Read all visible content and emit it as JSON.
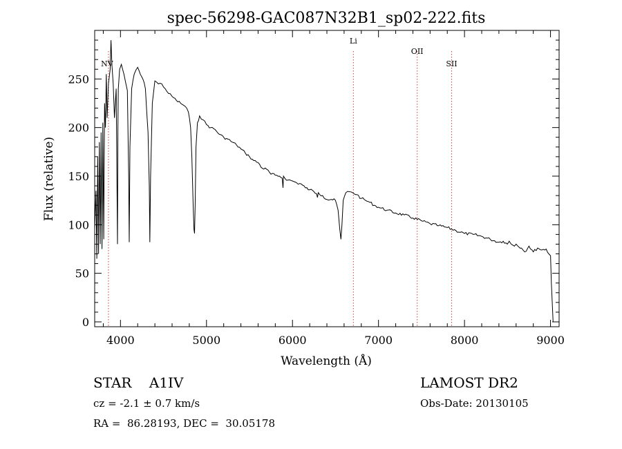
{
  "chart_data": {
    "type": "line",
    "title": "spec-56298-GAC087N32B1_sp02-222.fits",
    "xlabel": "Wavelength (Å)",
    "ylabel": "Flux (relative)",
    "xlim": [
      3700,
      9100
    ],
    "ylim": [
      -5,
      300
    ],
    "xticks": [
      4000,
      5000,
      6000,
      7000,
      8000,
      9000
    ],
    "yticks": [
      0,
      50,
      100,
      150,
      200,
      250
    ],
    "series": [
      {
        "name": "spectrum",
        "x": [
          3700,
          3715,
          3725,
          3735,
          3745,
          3755,
          3765,
          3775,
          3785,
          3795,
          3805,
          3815,
          3825,
          3835,
          3845,
          3860,
          3880,
          3890,
          3900,
          3915,
          3930,
          3950,
          3965,
          3970,
          3975,
          3990,
          4010,
          4040,
          4080,
          4095,
          4102,
          4110,
          4130,
          4160,
          4200,
          4230,
          4260,
          4290,
          4320,
          4335,
          4341,
          4350,
          4370,
          4400,
          4440,
          4480,
          4520,
          4560,
          4600,
          4650,
          4700,
          4750,
          4790,
          4815,
          4830,
          4845,
          4855,
          4861,
          4868,
          4878,
          4895,
          4920,
          4960,
          5000,
          5050,
          5100,
          5150,
          5200,
          5250,
          5300,
          5350,
          5400,
          5450,
          5500,
          5550,
          5600,
          5650,
          5700,
          5750,
          5800,
          5850,
          5880,
          5890,
          5895,
          5910,
          5950,
          6000,
          6050,
          6100,
          6150,
          6200,
          6250,
          6280,
          6290,
          6300,
          6350,
          6400,
          6450,
          6500,
          6530,
          6550,
          6563,
          6575,
          6590,
          6620,
          6660,
          6700,
          6750,
          6800,
          6850,
          6900,
          6950,
          7000,
          7100,
          7200,
          7300,
          7400,
          7500,
          7600,
          7700,
          7800,
          7900,
          8000,
          8100,
          8200,
          8300,
          8400,
          8450,
          8498,
          8520,
          8542,
          8580,
          8600,
          8662,
          8700,
          8750,
          8800,
          8850,
          8900,
          8950,
          8980,
          9000,
          9010,
          9030
        ],
        "y": [
          95,
          135,
          65,
          170,
          70,
          185,
          80,
          195,
          75,
          205,
          85,
          225,
          200,
          255,
          210,
          245,
          260,
          290,
          265,
          245,
          210,
          240,
          80,
          200,
          240,
          260,
          265,
          255,
          238,
          150,
          82,
          180,
          240,
          255,
          262,
          255,
          250,
          240,
          195,
          140,
          82,
          150,
          225,
          248,
          245,
          245,
          240,
          235,
          232,
          228,
          225,
          222,
          216,
          200,
          170,
          120,
          95,
          91,
          120,
          180,
          205,
          212,
          208,
          203,
          200,
          198,
          193,
          190,
          188,
          185,
          182,
          178,
          174,
          170,
          166,
          164,
          158,
          157,
          152,
          151,
          150,
          148,
          138,
          150,
          148,
          146,
          145,
          143,
          142,
          138,
          136,
          134,
          132,
          128,
          133,
          130,
          126,
          126,
          125,
          115,
          95,
          85,
          100,
          125,
          133,
          134,
          133,
          131,
          127,
          125,
          123,
          120,
          118,
          115,
          112,
          110,
          107,
          104,
          101,
          99,
          97,
          94,
          91,
          90,
          88,
          85,
          82,
          83,
          80,
          83,
          80,
          78,
          80,
          76,
          72,
          78,
          72,
          76,
          74,
          75,
          70,
          68,
          40,
          0
        ]
      }
    ],
    "lines": [
      {
        "name": "NV",
        "wavelength": 3860
      },
      {
        "name": "Li",
        "wavelength": 6708
      },
      {
        "name": "OII",
        "wavelength": 7450
      },
      {
        "name": "SII",
        "wavelength": 7850
      }
    ]
  },
  "info": {
    "object_type": "STAR",
    "subclass": "A1IV",
    "survey": "LAMOST DR2",
    "redshift": "cz = -2.1 ± 0.7 km/s",
    "obs_date": "Obs-Date: 20130105",
    "coords": "RA =  86.28193, DEC =  30.05178"
  }
}
